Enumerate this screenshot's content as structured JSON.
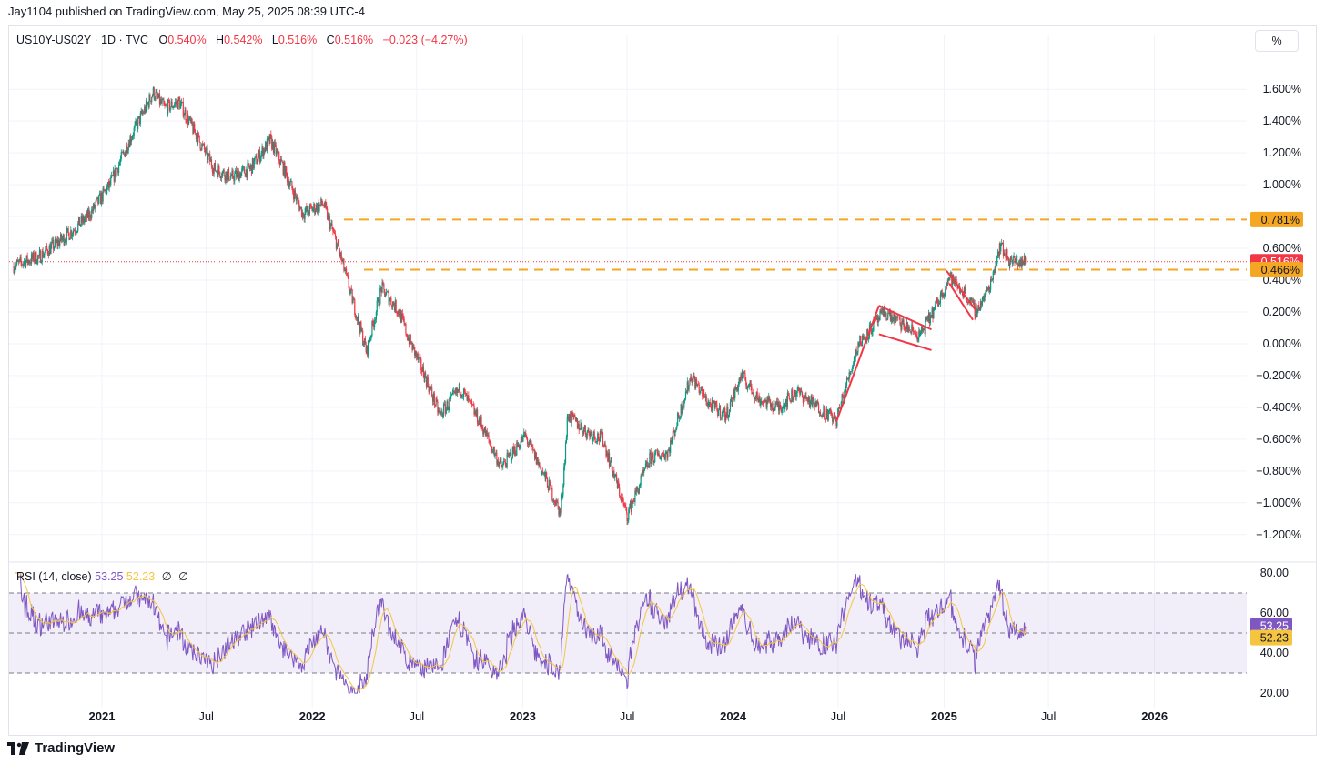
{
  "header": {
    "publisher_line": "Jay1104 published on TradingView.com, May 25, 2025 08:39 UTC-4"
  },
  "legend": {
    "symbol": "US10Y-US02Y · 1D · TVC",
    "open_label": "O",
    "open": "0.540%",
    "high_label": "H",
    "high": "0.542%",
    "low_label": "L",
    "low": "0.516%",
    "close_label": "C",
    "close": "0.516%",
    "change": "−0.023 (−4.27%)"
  },
  "rsi_legend": {
    "label": "RSI (14, close)",
    "rsi_value": "53.25",
    "ma_value": "52.23",
    "extra1": "∅",
    "extra2": "∅"
  },
  "scale_button": "%",
  "footer": {
    "brand": "TradingView"
  },
  "colors": {
    "up": "#089981",
    "down": "#f23645",
    "fib": "#f5a623",
    "rsi": "#7e57c2",
    "rsi_ma": "#f5c542",
    "price_tag": "#f23645",
    "grid": "#f0f3fa"
  },
  "chart_data": [
    {
      "type": "candlestick",
      "title": "US10Y-US02Y · 1D · TVC",
      "x_ticks": [
        "2021",
        "Jul",
        "2022",
        "Jul",
        "2023",
        "Jul",
        "2024",
        "Jul",
        "2025",
        "Jul",
        "2026"
      ],
      "y_ticks": [
        "1.600%",
        "1.400%",
        "1.200%",
        "1.000%",
        "0.800%",
        "0.600%",
        "0.400%",
        "0.200%",
        "0.000%",
        "−0.200%",
        "−0.400%",
        "−0.600%",
        "−0.800%",
        "−1.000%",
        "−1.200%"
      ],
      "y_tick_values": [
        1.6,
        1.4,
        1.2,
        1.0,
        0.8,
        0.6,
        0.4,
        0.2,
        0.0,
        -0.2,
        -0.4,
        -0.6,
        -0.8,
        -1.0,
        -1.2
      ],
      "ylim": [
        -1.35,
        1.83
      ],
      "xlim": [
        "2020-07-24",
        "2026-06-10"
      ],
      "series_path": [
        [
          "2020-08-01",
          0.49
        ],
        [
          "2020-09-15",
          0.55
        ],
        [
          "2020-11-01",
          0.68
        ],
        [
          "2020-12-10",
          0.81
        ],
        [
          "2021-01-15",
          1.0
        ],
        [
          "2021-02-20",
          1.3
        ],
        [
          "2021-03-31",
          1.58
        ],
        [
          "2021-04-20",
          1.48
        ],
        [
          "2021-05-15",
          1.52
        ],
        [
          "2021-06-15",
          1.3
        ],
        [
          "2021-07-15",
          1.1
        ],
        [
          "2021-08-15",
          1.05
        ],
        [
          "2021-09-15",
          1.1
        ],
        [
          "2021-10-20",
          1.28
        ],
        [
          "2021-11-10",
          1.12
        ],
        [
          "2021-12-15",
          0.82
        ],
        [
          "2022-01-20",
          0.88
        ],
        [
          "2022-02-15",
          0.6
        ],
        [
          "2022-03-10",
          0.3
        ],
        [
          "2022-04-05",
          -0.05
        ],
        [
          "2022-05-01",
          0.35
        ],
        [
          "2022-06-01",
          0.2
        ],
        [
          "2022-06-15",
          0.05
        ],
        [
          "2022-07-15",
          -0.2
        ],
        [
          "2022-08-10",
          -0.45
        ],
        [
          "2022-09-15",
          -0.28
        ],
        [
          "2022-10-20",
          -0.5
        ],
        [
          "2022-11-25",
          -0.78
        ],
        [
          "2023-01-05",
          -0.58
        ],
        [
          "2023-02-10",
          -0.85
        ],
        [
          "2023-03-08",
          -1.07
        ],
        [
          "2023-03-20",
          -0.45
        ],
        [
          "2023-04-20",
          -0.55
        ],
        [
          "2023-05-20",
          -0.6
        ],
        [
          "2023-06-15",
          -0.9
        ],
        [
          "2023-07-01",
          -1.08
        ],
        [
          "2023-08-10",
          -0.72
        ],
        [
          "2023-09-10",
          -0.68
        ],
        [
          "2023-10-20",
          -0.2
        ],
        [
          "2023-11-20",
          -0.38
        ],
        [
          "2023-12-20",
          -0.45
        ],
        [
          "2024-01-15",
          -0.2
        ],
        [
          "2024-02-15",
          -0.35
        ],
        [
          "2024-03-20",
          -0.4
        ],
        [
          "2024-04-20",
          -0.3
        ],
        [
          "2024-05-20",
          -0.38
        ],
        [
          "2024-06-28",
          -0.48
        ],
        [
          "2024-08-05",
          0.0
        ],
        [
          "2024-09-20",
          0.2
        ],
        [
          "2024-10-20",
          0.12
        ],
        [
          "2024-11-20",
          0.05
        ],
        [
          "2024-12-20",
          0.25
        ],
        [
          "2025-01-10",
          0.42
        ],
        [
          "2025-02-05",
          0.32
        ],
        [
          "2025-02-25",
          0.2
        ],
        [
          "2025-03-20",
          0.35
        ],
        [
          "2025-04-08",
          0.62
        ],
        [
          "2025-04-25",
          0.52
        ],
        [
          "2025-05-22",
          0.516
        ]
      ],
      "horizontal_levels": [
        0.781,
        0.466
      ],
      "last_price": 0.516,
      "price_tags": [
        "0.781%",
        "0.516%",
        "0.466%"
      ],
      "drawings": [
        {
          "type": "trendline",
          "from": [
            "2024-06-28",
            -0.49
          ],
          "to": [
            "2024-09-10",
            0.24
          ]
        },
        {
          "type": "trendline",
          "from": [
            "2024-09-10",
            0.24
          ],
          "to": [
            "2024-12-10",
            0.09
          ]
        },
        {
          "type": "trendline",
          "from": [
            "2024-09-10",
            0.06
          ],
          "to": [
            "2024-12-10",
            -0.04
          ]
        },
        {
          "type": "trendline",
          "from": [
            "2025-01-05",
            0.46
          ],
          "to": [
            "2025-02-25",
            0.21
          ]
        },
        {
          "type": "trendline",
          "from": [
            "2025-01-10",
            0.38
          ],
          "to": [
            "2025-02-20",
            0.15
          ]
        }
      ]
    },
    {
      "type": "line",
      "title": "RSI (14, close)",
      "y_ticks": [
        "80.00",
        "60.00",
        "40.00",
        "20.00"
      ],
      "y_tick_values": [
        80,
        60,
        40,
        20
      ],
      "ylim": [
        16.4,
        83.6
      ],
      "band": [
        30,
        70
      ],
      "midline": 50,
      "series": [
        {
          "name": "RSI",
          "last": 53.25,
          "range": [
            20,
            80
          ]
        },
        {
          "name": "MA",
          "last": 52.23
        }
      ],
      "value_tags": [
        "53.25",
        "52.23"
      ]
    }
  ]
}
